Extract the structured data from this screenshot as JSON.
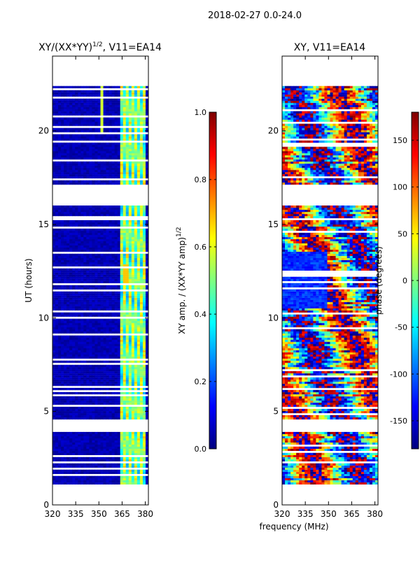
{
  "chart_data": {
    "type": "heatmap",
    "suptitle": "2018-02-27 0.0-24.0",
    "shared_xlabel": "frequency (MHz)",
    "panels": [
      {
        "id": "amp",
        "title": "XY/(XX*YY)",
        "title_sup": "1/2",
        "title_suffix": ", V11=EA14",
        "ylabel": "UT (hours)",
        "xlim": [
          320,
          382
        ],
        "ylim": [
          0,
          24
        ],
        "xticks": [
          320,
          335,
          350,
          365,
          380
        ],
        "yticks": [
          0,
          5,
          10,
          15,
          20
        ],
        "colormap": "jet",
        "colorbar": {
          "label": "XY amp. / (XX*YY amp)",
          "label_sup": "1/2",
          "range": [
            0.0,
            1.0
          ],
          "ticks": [
            "0.0",
            "0.2",
            "0.4",
            "0.6",
            "0.8",
            "1.0"
          ],
          "tick_values": [
            0.0,
            0.2,
            0.4,
            0.6,
            0.8,
            1.0
          ]
        },
        "data_span_hours": [
          1.1,
          22.4
        ],
        "gap_hours": [
          [
            16.0,
            17.1
          ],
          [
            3.9,
            4.6
          ]
        ],
        "bright_freq_band_mhz": [
          363,
          380
        ],
        "notes": "mostly low amplitude (~0.05) below 363 MHz; values 0.3-0.7 in 363-380 MHz band"
      },
      {
        "id": "phase",
        "title": "XY, V11=EA14",
        "xlim": [
          320,
          382
        ],
        "ylim": [
          0,
          24
        ],
        "xticks": [
          320,
          335,
          350,
          365,
          380
        ],
        "yticks": [
          0,
          5,
          10,
          15,
          20
        ],
        "colormap": "jet",
        "colorbar": {
          "label": "phase (degrees)",
          "range": [
            -180,
            180
          ],
          "ticks": [
            "-150",
            "-100",
            "-50",
            "0",
            "50",
            "100",
            "150"
          ],
          "tick_values": [
            -150,
            -100,
            -50,
            0,
            50,
            100,
            150
          ]
        },
        "data_span_hours": [
          1.1,
          22.4
        ],
        "gap_hours": [
          [
            16.0,
            17.1
          ],
          [
            3.9,
            4.6
          ]
        ],
        "notes": "phase wraps across full range with noisy structure"
      }
    ]
  },
  "colors": {
    "low": "#00007f",
    "mid": "#7fff7f",
    "high": "#7f0000"
  }
}
